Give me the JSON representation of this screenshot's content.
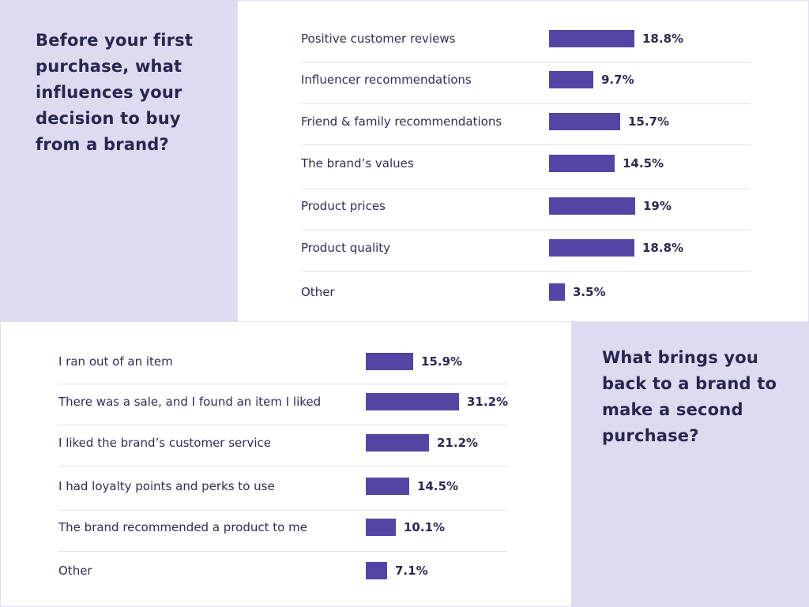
{
  "colors": {
    "bar": "#5445a4",
    "panel_lavender": "#dedaef",
    "text": "#26264f"
  },
  "chart_data": [
    {
      "type": "bar",
      "orientation": "horizontal",
      "title": "Before your first purchase, what influences your decision to buy from a brand?",
      "categories": [
        "Positive customer reviews",
        "Influencer recommendations",
        "Friend & family recommendations",
        "The brand’s values",
        "Product prices",
        "Product quality",
        "Other"
      ],
      "values": [
        18.8,
        9.7,
        15.7,
        14.5,
        19,
        18.8,
        3.5
      ],
      "labels": [
        "18.8%",
        "9.7%",
        "15.7%",
        "14.5%",
        "19%",
        "18.8%",
        "3.5%"
      ],
      "unit": "%",
      "xlabel": "",
      "ylabel": "",
      "grid": false
    },
    {
      "type": "bar",
      "orientation": "horizontal",
      "title": "What brings you back to a brand to make a second purchase?",
      "categories": [
        "I ran out of an item",
        "There was a sale, and I found an item I liked",
        "I liked the brand’s customer service",
        "I had loyalty points and perks to use",
        "The brand recommended a product to me",
        "Other"
      ],
      "values": [
        15.9,
        31.2,
        21.2,
        14.5,
        10.1,
        7.1
      ],
      "labels": [
        "15.9%",
        "31.2%",
        "21.2%",
        "14.5%",
        "10.1%",
        "7.1%"
      ],
      "unit": "%",
      "xlabel": "",
      "ylabel": "",
      "grid": false
    }
  ]
}
